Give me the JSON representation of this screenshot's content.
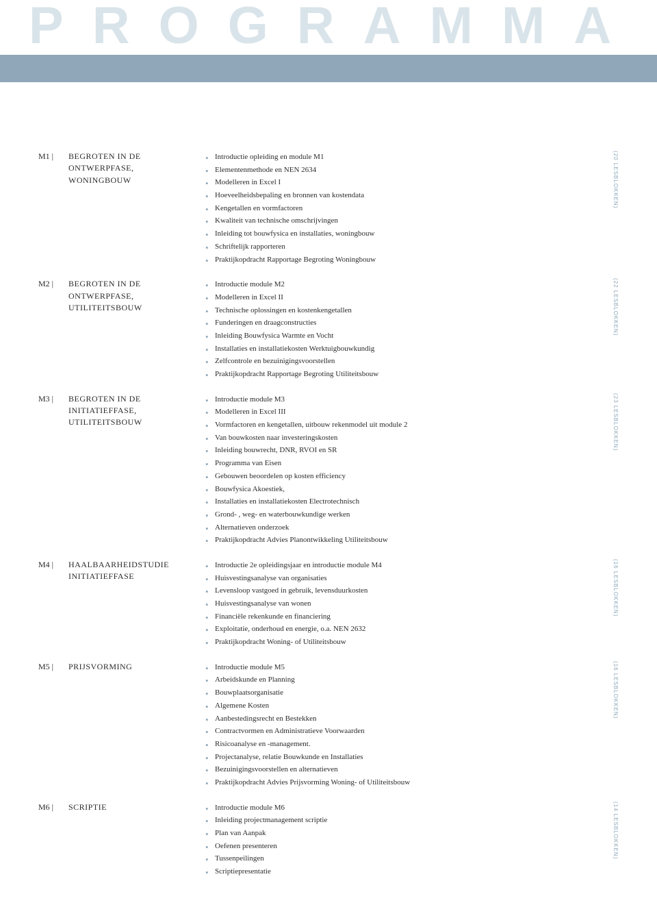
{
  "page_title": "PROGRAMMA",
  "colors": {
    "title_color": "#d9e4ea",
    "band_color": "#8fa7b8",
    "bullet_color": "#8fa7b8",
    "text_color": "#2b2b2b",
    "lesblokken_color": "#8fa7b8",
    "background": "#ffffff"
  },
  "typography": {
    "title_fontsize": 76,
    "title_letterspacing": 42,
    "module_title_fontsize": 12,
    "item_fontsize": 11,
    "lesblokken_fontsize": 8
  },
  "modules": [
    {
      "code": "M1 |",
      "title": "BEGROTEN IN DE ONTWERPFASE, WONINGBOUW",
      "lesblokken": "(20 LESBLOKKEN)",
      "items": [
        "Introductie opleiding en module M1",
        "Elementenmethode en NEN 2634",
        "Modelleren in Excel I",
        "Hoeveelheidsbepaling en bronnen van kostendata",
        "Kengetallen en vormfactoren",
        "Kwaliteit van technische omschrijvingen",
        "Inleiding tot bouwfysica en installaties, woningbouw",
        "Schriftelijk rapporteren",
        "Praktijkopdracht Rapportage Begroting Woningbouw"
      ]
    },
    {
      "code": "M2 |",
      "title": "BEGROTEN IN DE ONTWERPFASE, UTILITEITSBOUW",
      "lesblokken": "(22 LESBLOKKEN)",
      "items": [
        "Introductie module M2",
        "Modelleren in Excel II",
        "Technische oplossingen en kostenkengetallen",
        "Funderingen en draagconstructies",
        "Inleiding Bouwfysica Warmte en Vocht",
        "Installaties en installatiekosten Werktuigbouwkundig",
        "Zelfcontrole en bezuinigingsvoorstellen",
        "Praktijkopdracht Rapportage Begroting Utiliteitsbouw"
      ]
    },
    {
      "code": "M3 |",
      "title": "BEGROTEN IN DE INITIATIEFFASE, UTILITEITSBOUW",
      "lesblokken": "(23 LESBLOKKEN)",
      "items": [
        "Introductie module M3",
        "Modelleren in Excel III",
        "Vormfactoren en kengetallen, uitbouw rekenmodel uit module 2",
        "Van bouwkosten naar investeringskosten",
        "Inleiding bouwrecht, DNR, RVOI en SR",
        "Programma van Eisen",
        "Gebouwen beoordelen op kosten efficiency",
        "Bouwfysica Akoestiek,",
        "Installaties en installatiekosten Electrotechnisch",
        "Grond- , weg- en waterbouwkundige werken",
        "Alternatieven onderzoek",
        "Praktijkopdracht Advies Planontwikkeling Utiliteitsbouw"
      ]
    },
    {
      "code": "M4 |",
      "title": "HAALBAARHEIDSTUDIE INITIATIEFFASE",
      "lesblokken": "(16 LESBLOKKEN)",
      "items": [
        "Introductie 2e opleidingsjaar en introductie module M4",
        "Huisvestingsanalyse van organisaties",
        "Levensloop vastgoed in gebruik, levensduurkosten",
        "Huisvestingsanalyse van wonen",
        "Financiële rekenkunde en financiering",
        "Exploitatie, onderhoud en energie, o.a. NEN 2632",
        "Praktijkopdracht Woning- of Utiliteitsbouw"
      ]
    },
    {
      "code": "M5 |",
      "title": "PRIJSVORMING",
      "lesblokken": "(16 LESBLOKKEN)",
      "items": [
        "Introductie module M5",
        "Arbeidskunde en Planning",
        "Bouwplaatsorganisatie",
        "Algemene Kosten",
        "Aanbestedingsrecht en Bestekken",
        "Contractvormen en Administratieve Voorwaarden",
        "Risicoanalyse en -management.",
        "Projectanalyse, relatie Bouwkunde en Installaties",
        "Bezuinigingsvoorstellen en alternatieven",
        "Praktijkopdracht Advies Prijsvorming Woning- of Utiliteitsbouw"
      ]
    },
    {
      "code": "M6 |",
      "title": "SCRIPTIE",
      "lesblokken": "(14 LESBLOKKEN)",
      "items": [
        "Introductie module M6",
        "Inleiding projectmanagement scriptie",
        "Plan van Aanpak",
        "Oefenen presenteren",
        "Tussenpeilingen",
        "Scriptiepresentatie"
      ]
    }
  ]
}
